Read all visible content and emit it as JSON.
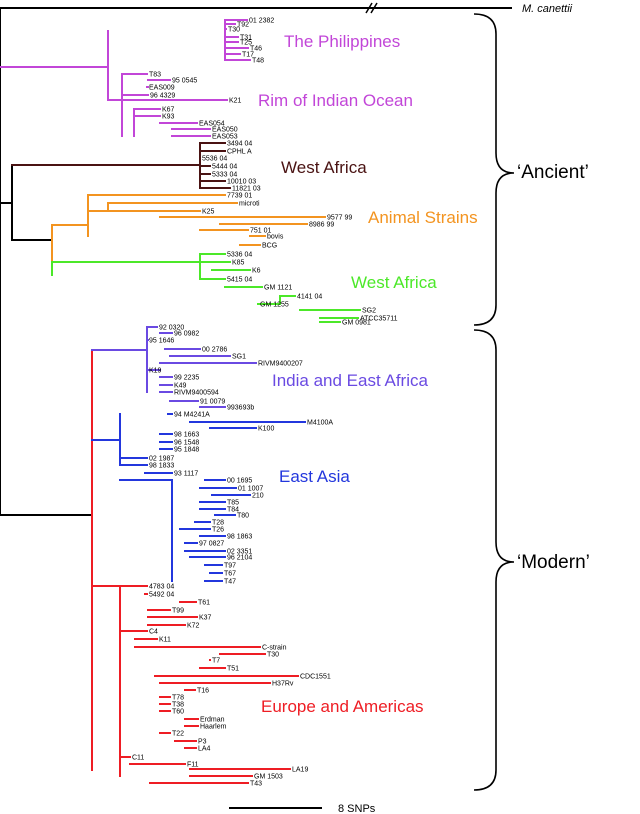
{
  "colors": {
    "root": "#000000",
    "west_africa_dark": "#4a1313",
    "philippines": "#c246d8",
    "animal": "#f39420",
    "west_africa_green": "#4ce829",
    "india_east_africa": "#6a4ae2",
    "east_asia": "#2337dd",
    "europe_americas": "#ee1d24"
  },
  "outgroup": {
    "label": "M. canettii"
  },
  "clade_labels": {
    "philippines": "The Philippines",
    "rim_indian_ocean": "Rim of Indian Ocean",
    "west_africa_1": "West Africa",
    "animal_strains": "Animal Strains",
    "west_africa_2": "West Africa",
    "india_east_africa": "India and East Africa",
    "east_asia": "East Asia",
    "europe_americas": "Europe and Americas"
  },
  "era_labels": {
    "ancient": "‘Ancient’",
    "modern": "‘Modern’"
  },
  "scale_bar": {
    "label": "8 SNPs"
  },
  "leaves": {
    "philippines": [
      "01 2382",
      "T92",
      "T30",
      "T31",
      "T25",
      "T46",
      "T17",
      "T48"
    ],
    "rim_indian_ocean": [
      "T83",
      "95 0545",
      "EAS009",
      "96 4329",
      "K21",
      "K67",
      "K93",
      "EAS054",
      "EAS050",
      "EAS053"
    ],
    "west_africa_1": [
      "3494 04",
      "CPHL A",
      "5536 04",
      "5444 04",
      "5333 04",
      "10010 03",
      "11821 03"
    ],
    "animal_strains": [
      "7739 01",
      "microti",
      "K25",
      "9577 99",
      "8986 99",
      "751 01",
      "bovis",
      "BCG"
    ],
    "west_africa_2": [
      "5336 04",
      "K85",
      "K6",
      "5415 04",
      "GM 1121",
      "4141 04",
      "GM 1255",
      "SG2",
      "ATCC35711",
      "GM 0981"
    ],
    "india_east_africa": [
      "92 0320",
      "96 0982",
      "95 1646",
      "00 2786",
      "SG1",
      "RIVM9400207",
      "K19",
      "99 2235",
      "K49",
      "RIVM9400594",
      "91 0079",
      "993693b"
    ],
    "east_asia": [
      "94 M4241A",
      "M4100A",
      "K100",
      "98 1663",
      "96 1548",
      "95 1848",
      "02 1987",
      "98 1833",
      "93 1117",
      "00 1695",
      "01 1007",
      "210",
      "T85",
      "T84",
      "T80",
      "T28",
      "T26",
      "98 1863",
      "97 0827",
      "02 3351",
      "96 2104",
      "T97",
      "T67",
      "T47"
    ],
    "europe_americas": [
      "4783 04",
      "5492 04",
      "T61",
      "T99",
      "K37",
      "K72",
      "C4",
      "K11",
      "C-strain",
      "T30",
      "T7",
      "T51",
      "CDC1551",
      "H37Rv",
      "T16",
      "T78",
      "T38",
      "T60",
      "Erdman",
      "Haarlem",
      "T22",
      "P3",
      "LA4",
      "C11",
      "F11",
      "LA19",
      "GM 1503",
      "T43"
    ]
  }
}
